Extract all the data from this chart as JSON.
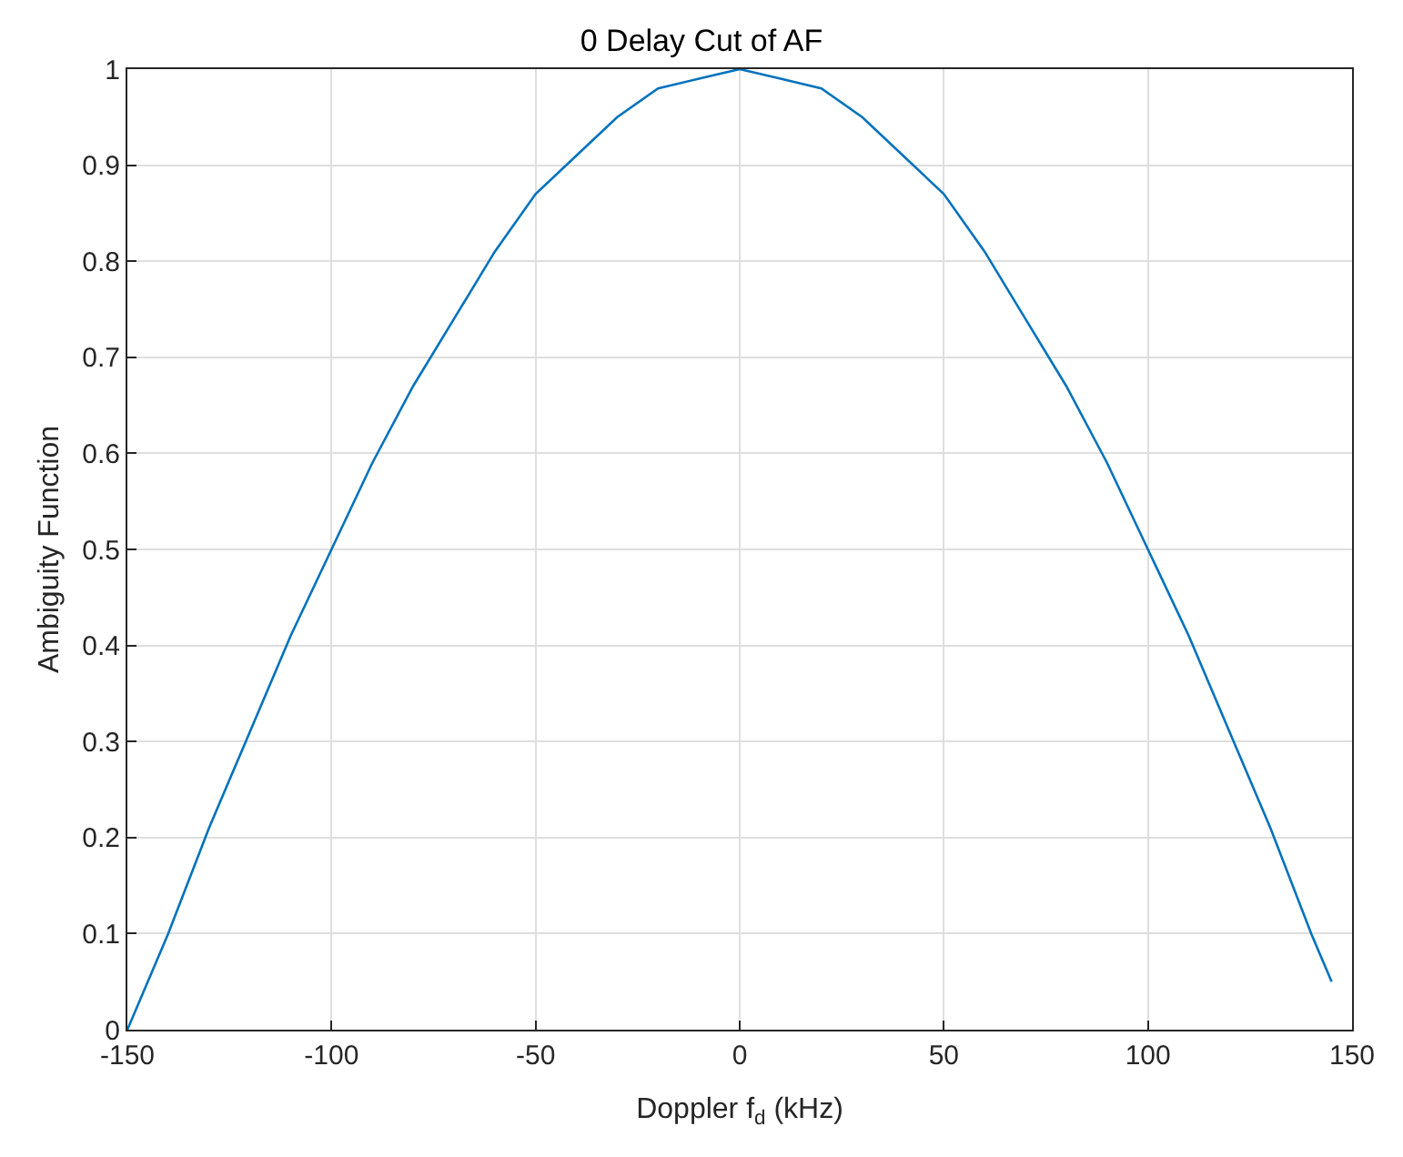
{
  "chart_data": {
    "type": "line",
    "title": "0 Delay Cut of AF",
    "xlabel": "Doppler f$_{d}$ (kHz)",
    "ylabel": "Ambiguity Function",
    "x": [
      -150,
      -140,
      -130,
      -120,
      -110,
      -100,
      -90,
      -80,
      -70,
      -60,
      -50,
      -40,
      -30,
      -20,
      -10,
      0,
      10,
      20,
      30,
      40,
      50,
      60,
      70,
      80,
      90,
      100,
      110,
      120,
      130,
      140,
      145
    ],
    "series": [
      {
        "color": "#0072bd",
        "values": [
          0,
          0.1,
          0.21,
          0.31,
          0.41,
          0.5,
          0.59,
          0.67,
          0.74,
          0.81,
          0.87,
          0.91,
          0.95,
          0.98,
          0.99,
          1,
          0.99,
          0.98,
          0.95,
          0.91,
          0.87,
          0.81,
          0.74,
          0.67,
          0.59,
          0.5,
          0.41,
          0.31,
          0.21,
          0.1,
          0.05
        ]
      }
    ],
    "xlim": [
      -150,
      150
    ],
    "xticks": [
      -150,
      -100,
      -50,
      0,
      50,
      100,
      150
    ],
    "ylim": [
      0,
      1
    ],
    "yticks": [
      0,
      0.1,
      0.2,
      0.3,
      0.4,
      0.5,
      0.6,
      0.7,
      0.8,
      0.9,
      1
    ],
    "grid": true,
    "marker": "none",
    "line_style": "solid"
  }
}
